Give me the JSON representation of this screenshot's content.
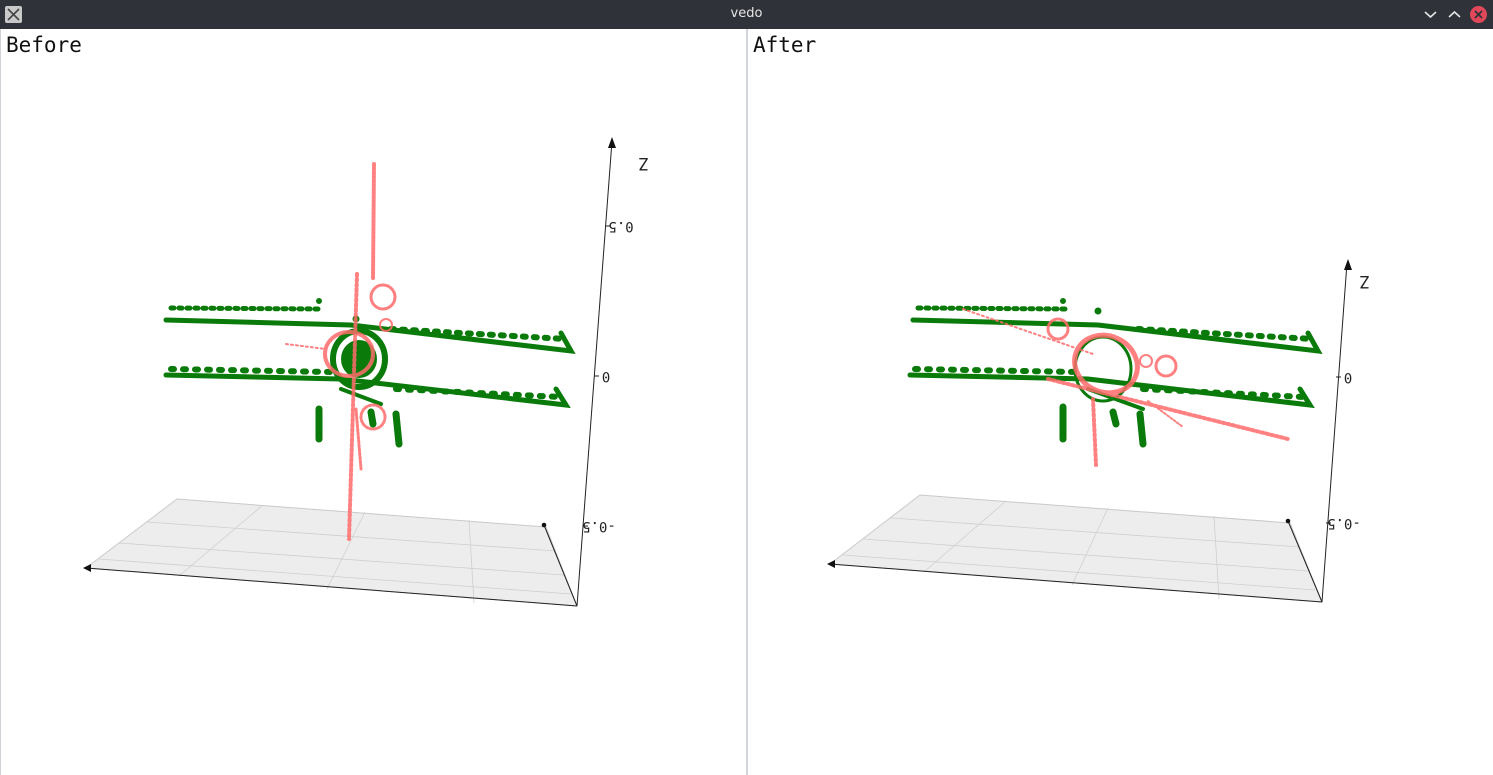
{
  "window": {
    "title": "vedo",
    "buttons": {
      "minimize_icon": "chevron-down-icon",
      "maximize_icon": "chevron-up-icon",
      "close_icon": "close-icon"
    }
  },
  "viewports": [
    {
      "label": "Before",
      "axis": {
        "z_title": "Z",
        "ticks": [
          "0.5",
          "0",
          "-0.5"
        ]
      }
    },
    {
      "label": "After",
      "axis": {
        "z_title": "Z",
        "ticks": [
          "0",
          "-0.5"
        ]
      }
    }
  ],
  "colors": {
    "titlebar": "#2f3238",
    "source_points": "#ff5c5c",
    "target_points": "#0a7a0a",
    "close_button": "#e0485a",
    "ground_plane": "#ededed"
  }
}
